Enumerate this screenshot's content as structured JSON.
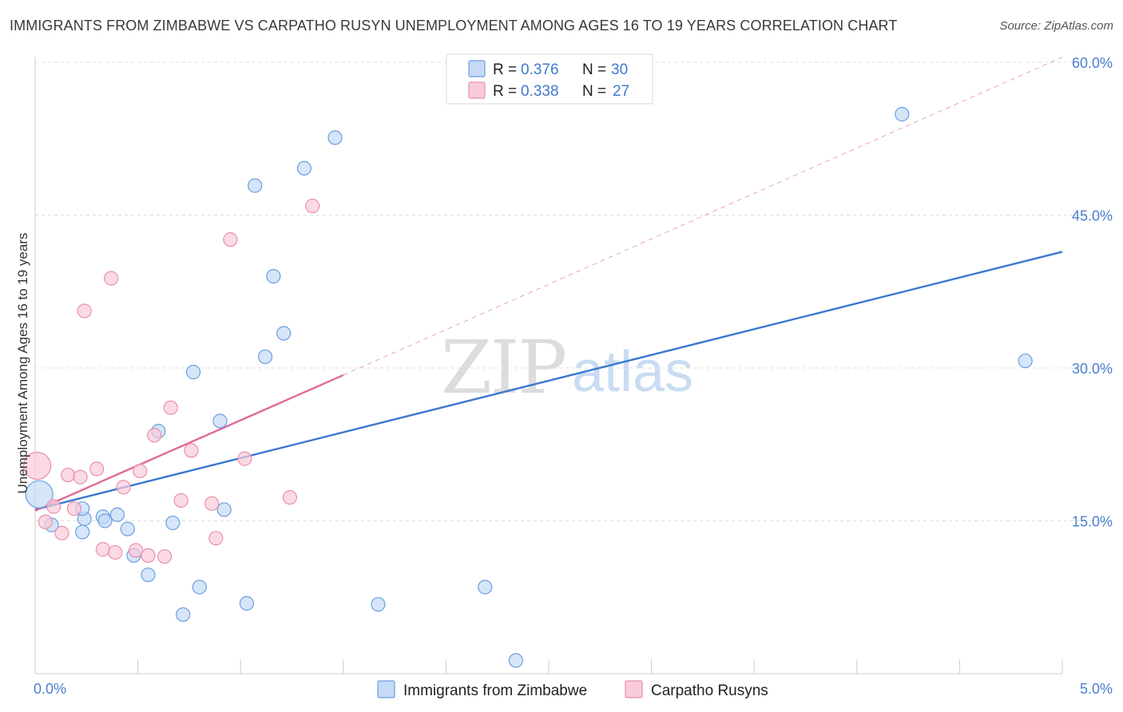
{
  "header": {
    "title": "IMMIGRANTS FROM ZIMBABWE VS CARPATHO RUSYN UNEMPLOYMENT AMONG AGES 16 TO 19 YEARS CORRELATION CHART",
    "source": "Source: ZipAtlas.com"
  },
  "watermark": {
    "part1": "ZIP",
    "part2": "atlas"
  },
  "legend": {
    "r_label": "R =",
    "n_label": "N =",
    "rows": [
      {
        "r": "0.376",
        "n": "30"
      },
      {
        "r": "0.338",
        "n": "27"
      }
    ]
  },
  "colors": {
    "blue_fill": "#c5daf5",
    "blue_stroke": "#6a9fe0",
    "blue_line": "#3a78d0",
    "pink_fill": "#f9cbd9",
    "pink_stroke": "#e890ac",
    "pink_line": "#e06a94"
  },
  "chart_data": {
    "type": "scatter",
    "title": "IMMIGRANTS FROM ZIMBABWE VS CARPATHO RUSYN UNEMPLOYMENT AMONG AGES 16 TO 19 YEARS CORRELATION CHART",
    "xlabel": "",
    "ylabel": "Unemployment Among Ages 16 to 19 years",
    "xlim": [
      0,
      5
    ],
    "ylim": [
      0,
      60
    ],
    "x_ticks": [
      "0.0%",
      "5.0%"
    ],
    "y_ticks": [
      "15.0%",
      "30.0%",
      "45.0%",
      "60.0%"
    ],
    "y_tick_values": [
      15,
      30,
      45,
      60
    ],
    "series": [
      {
        "name": "Immigrants from Zimbabwe",
        "color": "#6a9fe0",
        "points": [
          [
            0.02,
            17.6
          ],
          [
            0.08,
            14.6
          ],
          [
            0.24,
            15.2
          ],
          [
            0.23,
            16.2
          ],
          [
            0.23,
            13.9
          ],
          [
            0.33,
            15.4
          ],
          [
            0.34,
            15.0
          ],
          [
            0.4,
            15.6
          ],
          [
            0.45,
            14.2
          ],
          [
            0.48,
            11.6
          ],
          [
            0.55,
            9.7
          ],
          [
            0.6,
            23.8
          ],
          [
            0.67,
            14.8
          ],
          [
            0.72,
            5.8
          ],
          [
            0.77,
            29.6
          ],
          [
            0.8,
            8.5
          ],
          [
            0.9,
            24.8
          ],
          [
            0.92,
            16.1
          ],
          [
            1.03,
            6.9
          ],
          [
            1.07,
            47.9
          ],
          [
            1.12,
            31.1
          ],
          [
            1.16,
            39.0
          ],
          [
            1.21,
            33.4
          ],
          [
            1.31,
            49.6
          ],
          [
            1.46,
            52.6
          ],
          [
            1.67,
            6.8
          ],
          [
            2.19,
            8.5
          ],
          [
            2.34,
            1.3
          ],
          [
            4.22,
            54.9
          ],
          [
            4.82,
            30.7
          ]
        ]
      },
      {
        "name": "Carpatho Rusyns",
        "color": "#e890ac",
        "points": [
          [
            0.01,
            20.4
          ],
          [
            0.05,
            14.9
          ],
          [
            0.09,
            16.4
          ],
          [
            0.13,
            13.8
          ],
          [
            0.16,
            19.5
          ],
          [
            0.19,
            16.2
          ],
          [
            0.22,
            19.3
          ],
          [
            0.24,
            35.6
          ],
          [
            0.3,
            20.1
          ],
          [
            0.33,
            12.2
          ],
          [
            0.37,
            38.8
          ],
          [
            0.39,
            11.9
          ],
          [
            0.43,
            18.3
          ],
          [
            0.49,
            12.1
          ],
          [
            0.51,
            19.9
          ],
          [
            0.55,
            11.6
          ],
          [
            0.58,
            23.4
          ],
          [
            0.63,
            11.5
          ],
          [
            0.66,
            26.1
          ],
          [
            0.71,
            17.0
          ],
          [
            0.76,
            21.9
          ],
          [
            0.86,
            16.7
          ],
          [
            0.88,
            13.3
          ],
          [
            0.95,
            42.6
          ],
          [
            1.02,
            21.1
          ],
          [
            1.24,
            17.3
          ],
          [
            1.35,
            45.9
          ]
        ]
      }
    ],
    "trend_lines": [
      {
        "series": "Immigrants from Zimbabwe",
        "x": [
          0.0,
          5.0
        ],
        "y": [
          16.1,
          41.4
        ],
        "style": "solid"
      },
      {
        "series": "Carpatho Rusyns",
        "x": [
          0.0,
          1.5
        ],
        "y": [
          16.0,
          29.3
        ],
        "style": "solid"
      },
      {
        "series": "Carpatho Rusyns",
        "x": [
          1.5,
          5.0
        ],
        "y": [
          29.3,
          60.5
        ],
        "style": "dashed"
      }
    ],
    "grid": true,
    "legend_position": "top-center"
  }
}
